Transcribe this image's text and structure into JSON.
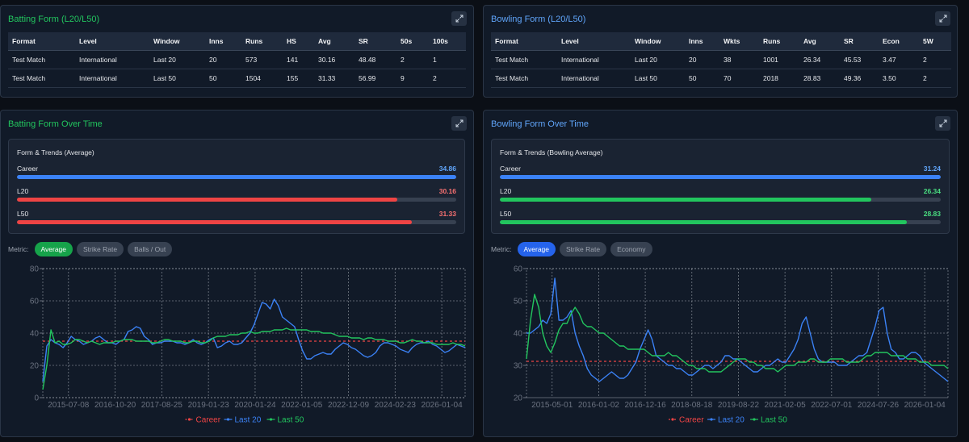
{
  "batting_table": {
    "title": "Batting Form (L20/L50)",
    "headers": [
      "Format",
      "Level",
      "Window",
      "Inns",
      "Runs",
      "HS",
      "Avg",
      "SR",
      "50s",
      "100s"
    ],
    "rows": [
      [
        "Test Match",
        "International",
        "Last 20",
        "20",
        "573",
        "141",
        "30.16",
        "48.48",
        "2",
        "1"
      ],
      [
        "Test Match",
        "International",
        "Last 50",
        "50",
        "1504",
        "155",
        "31.33",
        "56.99",
        "9",
        "2"
      ]
    ]
  },
  "bowling_table": {
    "title": "Bowling Form (L20/L50)",
    "headers": [
      "Format",
      "Level",
      "Window",
      "Inns",
      "Wkts",
      "Runs",
      "Avg",
      "SR",
      "Econ",
      "5W"
    ],
    "rows": [
      [
        "Test Match",
        "International",
        "Last 20",
        "20",
        "38",
        "1001",
        "26.34",
        "45.53",
        "3.47",
        "2"
      ],
      [
        "Test Match",
        "International",
        "Last 50",
        "50",
        "70",
        "2018",
        "28.83",
        "49.36",
        "3.50",
        "2"
      ]
    ]
  },
  "batting_form": {
    "title": "Batting Form Over Time",
    "box_title": "Form & Trends (Average)",
    "bars": [
      {
        "label": "Career",
        "value": "34.86",
        "fill": 1.0,
        "color": "#3b82f6",
        "text_color": "#60a5fa"
      },
      {
        "label": "L20",
        "value": "30.16",
        "fill": 0.865,
        "color": "#ef4444",
        "text_color": "#f87171"
      },
      {
        "label": "L50",
        "value": "31.33",
        "fill": 0.899,
        "color": "#ef4444",
        "text_color": "#f87171"
      }
    ],
    "metric_label": "Metric:",
    "metrics": [
      "Average",
      "Strike Rate",
      "Balls / Out"
    ],
    "active_metric": 0
  },
  "bowling_form": {
    "title": "Bowling Form Over Time",
    "box_title": "Form & Trends (Bowling Average)",
    "bars": [
      {
        "label": "Career",
        "value": "31.24",
        "fill": 1.0,
        "color": "#3b82f6",
        "text_color": "#60a5fa"
      },
      {
        "label": "L20",
        "value": "26.34",
        "fill": 0.843,
        "color": "#22c55e",
        "text_color": "#4ade80"
      },
      {
        "label": "L50",
        "value": "28.83",
        "fill": 0.923,
        "color": "#22c55e",
        "text_color": "#4ade80"
      }
    ],
    "metric_label": "Metric:",
    "metrics": [
      "Average",
      "Strike Rate",
      "Economy"
    ],
    "active_metric": 0
  },
  "chart_data": [
    {
      "type": "line",
      "title": "Batting Form Over Time",
      "ylim": [
        0,
        80
      ],
      "yticks": [
        0,
        20,
        40,
        60,
        80
      ],
      "xticks": [
        "2015-07-08",
        "2016-10-20",
        "2017-08-25",
        "2019-01-23",
        "2020-01-24",
        "2022-01-05",
        "2022-12-09",
        "2024-02-23",
        "2026-01-04"
      ],
      "n_points": 210,
      "series": [
        {
          "name": "Career",
          "color": "#ef4444",
          "dashed": true,
          "values": [
            35,
            35
          ]
        },
        {
          "name": "Last 20",
          "color": "#3b82f6",
          "dashed": false,
          "values": [
            10,
            32,
            36,
            34,
            33,
            31,
            34,
            38,
            36,
            35,
            33,
            34,
            35,
            37,
            38,
            36,
            34,
            34,
            33,
            35,
            36,
            41,
            42,
            44,
            43,
            38,
            36,
            33,
            34,
            34,
            35,
            35,
            35,
            34,
            34,
            33,
            34,
            36,
            34,
            33,
            34,
            36,
            37,
            31,
            32,
            34,
            35,
            33,
            33,
            34,
            37,
            40,
            45,
            52,
            59,
            58,
            55,
            61,
            57,
            50,
            48,
            46,
            44,
            36,
            29,
            24,
            24,
            26,
            27,
            28,
            27,
            27,
            30,
            32,
            34,
            33,
            31,
            30,
            28,
            26,
            25,
            26,
            28,
            32,
            34,
            34,
            33,
            32,
            30,
            29,
            28,
            31,
            33,
            34,
            34,
            35,
            33,
            32,
            30,
            28,
            29,
            31,
            33,
            32,
            31
          ]
        },
        {
          "name": "Last 50",
          "color": "#22c55e",
          "dashed": false,
          "values": [
            5,
            20,
            42,
            34,
            35,
            33,
            33,
            34,
            36,
            36,
            35,
            34,
            35,
            34,
            33,
            34,
            34,
            34,
            35,
            35,
            36,
            36,
            36,
            35,
            35,
            35,
            35,
            34,
            34,
            35,
            36,
            36,
            35,
            35,
            35,
            34,
            34,
            35,
            35,
            34,
            34,
            35,
            37,
            38,
            38,
            38,
            39,
            39,
            39,
            40,
            40,
            41,
            40,
            40,
            41,
            41,
            41,
            42,
            42,
            42,
            43,
            42,
            42,
            42,
            42,
            42,
            41,
            41,
            41,
            40,
            40,
            40,
            39,
            38,
            38,
            38,
            37,
            37,
            37,
            36,
            37,
            37,
            36,
            36,
            36,
            35,
            35,
            35,
            34,
            34,
            35,
            36,
            35,
            35,
            34,
            34,
            34,
            33,
            33,
            33,
            33,
            34,
            33,
            33,
            32
          ]
        }
      ]
    },
    {
      "type": "line",
      "title": "Bowling Form Over Time",
      "ylim": [
        20,
        60
      ],
      "yticks": [
        20,
        30,
        40,
        50,
        60
      ],
      "xticks": [
        "2015-05-01",
        "2016-01-02",
        "2016-12-16",
        "2018-08-18",
        "2019-08-22",
        "2021-02-05",
        "2022-07-01",
        "2024-07-26",
        "2026-01-04"
      ],
      "n_points": 210,
      "series": [
        {
          "name": "Career",
          "color": "#ef4444",
          "dashed": true,
          "values": [
            31.24,
            31.24
          ]
        },
        {
          "name": "Last 20",
          "color": "#3b82f6",
          "dashed": false,
          "values": [
            40,
            40,
            41,
            42,
            44,
            43,
            46,
            57,
            44,
            44,
            45,
            47,
            40,
            36,
            33,
            29,
            27,
            26,
            25,
            26,
            27,
            28,
            27,
            26,
            26,
            27,
            29,
            31,
            35,
            38,
            41,
            38,
            33,
            32,
            31,
            30,
            30,
            29,
            29,
            28,
            27,
            27,
            28,
            29,
            30,
            30,
            29,
            30,
            31,
            33,
            33,
            32,
            32,
            31,
            30,
            29,
            28,
            28,
            29,
            30,
            30,
            31,
            32,
            31,
            31,
            33,
            35,
            38,
            43,
            45,
            40,
            35,
            32,
            31,
            31,
            31,
            31,
            30,
            30,
            30,
            31,
            32,
            33,
            33,
            34,
            38,
            42,
            47,
            48,
            40,
            35,
            34,
            32,
            32,
            33,
            34,
            34,
            33,
            31,
            30,
            29,
            28,
            27,
            26,
            25
          ]
        },
        {
          "name": "Last 50",
          "color": "#22c55e",
          "dashed": false,
          "values": [
            32,
            44,
            52,
            48,
            40,
            36,
            34,
            37,
            41,
            43,
            43,
            46,
            48,
            46,
            43,
            42,
            42,
            41,
            40,
            40,
            39,
            38,
            37,
            36,
            36,
            35,
            35,
            35,
            35,
            35,
            34,
            33,
            33,
            33,
            33,
            34,
            33,
            33,
            32,
            31,
            30,
            30,
            29,
            29,
            29,
            28,
            28,
            28,
            28,
            29,
            30,
            31,
            32,
            32,
            32,
            31,
            31,
            30,
            30,
            29,
            29,
            29,
            28,
            29,
            30,
            30,
            30,
            31,
            31,
            31,
            32,
            32,
            31,
            31,
            31,
            32,
            32,
            32,
            32,
            31,
            31,
            31,
            31,
            32,
            33,
            33,
            34,
            34,
            34,
            34,
            33,
            33,
            33,
            33,
            32,
            32,
            32,
            31,
            31,
            31,
            30,
            30,
            30,
            30,
            29
          ]
        }
      ]
    }
  ],
  "legend_labels": [
    "Career",
    "Last 20",
    "Last 50"
  ]
}
